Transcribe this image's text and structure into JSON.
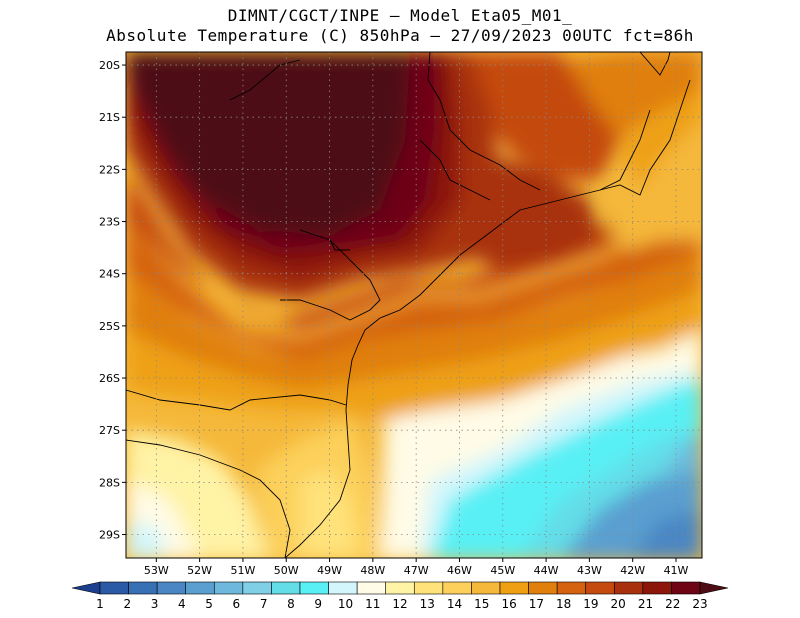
{
  "header": {
    "line1": "DIMNT/CGCT/INPE –  Model Eta05_M01_",
    "line2": "Absolute Temperature (C) 850hPa –  27/09/2023 00UTC fct=86h"
  },
  "map": {
    "lat_labels": [
      "20S",
      "21S",
      "22S",
      "23S",
      "24S",
      "25S",
      "26S",
      "27S",
      "28S",
      "29S"
    ],
    "lon_labels": [
      "53W",
      "52W",
      "51W",
      "50W",
      "49W",
      "48W",
      "47W",
      "46W",
      "45W",
      "44W",
      "43W",
      "42W",
      "41W"
    ],
    "lat_values": [
      -20,
      -21,
      -22,
      -23,
      -24,
      -25,
      -26,
      -27,
      -28,
      -29
    ],
    "lon_values": [
      -53,
      -52,
      -51,
      -50,
      -49,
      -48,
      -47,
      -46,
      -45,
      -44,
      -43,
      -42,
      -41
    ],
    "extent": {
      "lon_min": -53.7,
      "lon_max": -40.4,
      "lat_min": -29.45,
      "lat_max": -19.75
    }
  },
  "colorbar": {
    "labels": [
      "1",
      "2",
      "3",
      "4",
      "5",
      "6",
      "7",
      "8",
      "9",
      "10",
      "11",
      "12",
      "13",
      "14",
      "15",
      "16",
      "17",
      "18",
      "19",
      "20",
      "21",
      "22",
      "23"
    ],
    "colors": [
      "#1b3e8f",
      "#2a5aa6",
      "#3870b6",
      "#4a86c4",
      "#5a9fd0",
      "#6db8dc",
      "#7fcfe6",
      "#63dde8",
      "#58f0f5",
      "#d2f6fc",
      "#fffbe6",
      "#fff3a6",
      "#ffe27a",
      "#fcd05a",
      "#f5b83a",
      "#eea012",
      "#e07f0c",
      "#d4620e",
      "#c44a0e",
      "#a8300c",
      "#8c160a",
      "#6e0414",
      "#4e0c14"
    ]
  }
}
